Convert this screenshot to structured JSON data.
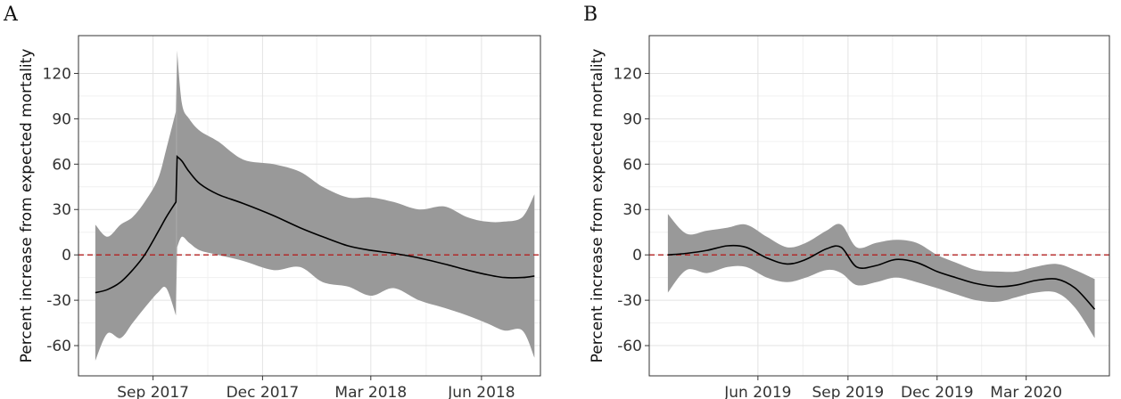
{
  "chart_data": [
    {
      "type": "area",
      "panel": "A",
      "title": "",
      "xlabel": "",
      "ylabel": "Percent increase from expected mortality",
      "xlim": [
        "2017-07-01",
        "2018-07-20"
      ],
      "ylim": [
        -80,
        145
      ],
      "yticks": [
        -60,
        -30,
        0,
        30,
        60,
        90,
        120
      ],
      "xticks": [
        {
          "date": "2017-09-01",
          "label": "Sep 2017"
        },
        {
          "date": "2017-12-01",
          "label": "Dec 2017"
        },
        {
          "date": "2018-03-01",
          "label": "Mar 2018"
        },
        {
          "date": "2018-06-01",
          "label": "Jun 2018"
        }
      ],
      "reference_line": {
        "y": 0,
        "color": "#b22222",
        "style": "dashed"
      },
      "grid": true,
      "band_color": "#999999",
      "line_color": "#000000",
      "x": [
        "2017-07-15",
        "2017-07-25",
        "2017-08-05",
        "2017-08-15",
        "2017-08-25",
        "2017-09-05",
        "2017-09-12",
        "2017-09-20",
        "2017-09-21",
        "2017-09-25",
        "2017-10-01",
        "2017-10-10",
        "2017-10-25",
        "2017-11-15",
        "2017-12-10",
        "2018-01-01",
        "2018-01-20",
        "2018-02-10",
        "2018-03-01",
        "2018-03-20",
        "2018-04-10",
        "2018-05-01",
        "2018-05-20",
        "2018-06-05",
        "2018-06-20",
        "2018-07-05",
        "2018-07-15"
      ],
      "series": [
        {
          "name": "",
          "role": "estimate",
          "values": [
            -25,
            -23,
            -18,
            -10,
            0,
            15,
            25,
            35,
            65,
            62,
            55,
            47,
            40,
            34,
            26,
            18,
            12,
            6,
            3,
            1,
            -2,
            -6,
            -10,
            -13,
            -15,
            -15,
            -14
          ]
        },
        {
          "role": "lower",
          "values": [
            -70,
            -52,
            -55,
            -45,
            -35,
            -25,
            -22,
            -40,
            5,
            12,
            8,
            3,
            0,
            -4,
            -10,
            -8,
            -18,
            -21,
            -27,
            -22,
            -30,
            -35,
            -40,
            -45,
            -50,
            -50,
            -68
          ]
        },
        {
          "role": "upper",
          "values": [
            20,
            12,
            20,
            25,
            35,
            50,
            70,
            95,
            135,
            100,
            90,
            82,
            75,
            63,
            60,
            55,
            45,
            38,
            38,
            35,
            30,
            32,
            25,
            22,
            22,
            25,
            40
          ]
        }
      ]
    },
    {
      "type": "area",
      "panel": "B",
      "title": "",
      "xlabel": "",
      "ylabel": "Percent increase from expected mortality",
      "xlim": [
        "2019-02-10",
        "2020-05-25"
      ],
      "ylim": [
        -80,
        145
      ],
      "yticks": [
        -60,
        -30,
        0,
        30,
        60,
        90,
        120
      ],
      "xticks": [
        {
          "date": "2019-06-01",
          "label": "Jun 2019"
        },
        {
          "date": "2019-09-01",
          "label": "Sep 2019"
        },
        {
          "date": "2019-12-01",
          "label": "Dec 2019"
        },
        {
          "date": "2020-03-01",
          "label": "Mar 2020"
        }
      ],
      "reference_line": {
        "y": 0,
        "color": "#b22222",
        "style": "dashed"
      },
      "grid": true,
      "band_color": "#999999",
      "line_color": "#000000",
      "x": [
        "2019-03-01",
        "2019-03-20",
        "2019-04-10",
        "2019-05-01",
        "2019-05-20",
        "2019-06-10",
        "2019-07-01",
        "2019-07-20",
        "2019-08-10",
        "2019-08-25",
        "2019-09-10",
        "2019-09-30",
        "2019-10-20",
        "2019-11-10",
        "2019-12-01",
        "2019-12-20",
        "2020-01-10",
        "2020-02-01",
        "2020-02-20",
        "2020-03-10",
        "2020-04-01",
        "2020-04-20",
        "2020-05-10"
      ],
      "series": [
        {
          "name": "",
          "role": "estimate",
          "values": [
            0,
            1,
            3,
            6,
            5,
            -2,
            -6,
            -3,
            4,
            5,
            -8,
            -7,
            -3,
            -5,
            -11,
            -15,
            -19,
            -21,
            -20,
            -17,
            -16,
            -22,
            -36
          ]
        },
        {
          "role": "lower",
          "values": [
            -25,
            -10,
            -12,
            -8,
            -8,
            -15,
            -18,
            -15,
            -10,
            -12,
            -20,
            -18,
            -15,
            -18,
            -22,
            -26,
            -30,
            -31,
            -28,
            -25,
            -25,
            -35,
            -55
          ]
        },
        {
          "role": "upper",
          "values": [
            27,
            14,
            16,
            18,
            20,
            12,
            5,
            8,
            16,
            20,
            5,
            8,
            10,
            8,
            0,
            -5,
            -10,
            -11,
            -11,
            -8,
            -6,
            -10,
            -16
          ]
        }
      ]
    }
  ]
}
